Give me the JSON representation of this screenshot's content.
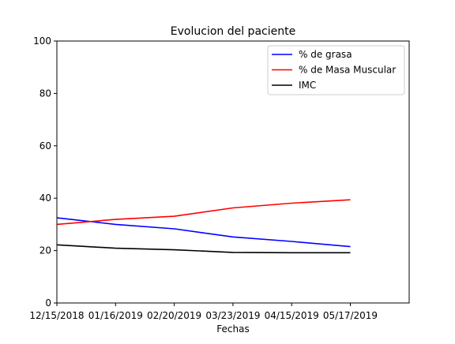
{
  "chart_data": {
    "type": "line",
    "title": "Evolucion del paciente",
    "xlabel": "Fechas",
    "ylabel": "",
    "categories": [
      "12/15/2018",
      "01/16/2019",
      "02/20/2019",
      "03/23/2019",
      "04/15/2019",
      "05/17/2019"
    ],
    "ylim": [
      0,
      100
    ],
    "yticks": [
      0,
      20,
      40,
      60,
      80,
      100
    ],
    "grid": false,
    "legend_position": "top-right",
    "series": [
      {
        "name": "% de grasa",
        "color": "#0000ff",
        "values": [
          32.5,
          30.0,
          28.3,
          25.2,
          23.5,
          21.5
        ]
      },
      {
        "name": "% de Masa Muscular",
        "color": "#ff0000",
        "values": [
          30.0,
          31.9,
          33.1,
          36.3,
          38.1,
          39.4
        ]
      },
      {
        "name": "IMC",
        "color": "#000000",
        "values": [
          22.2,
          20.9,
          20.3,
          19.3,
          19.2,
          19.2
        ]
      }
    ]
  }
}
